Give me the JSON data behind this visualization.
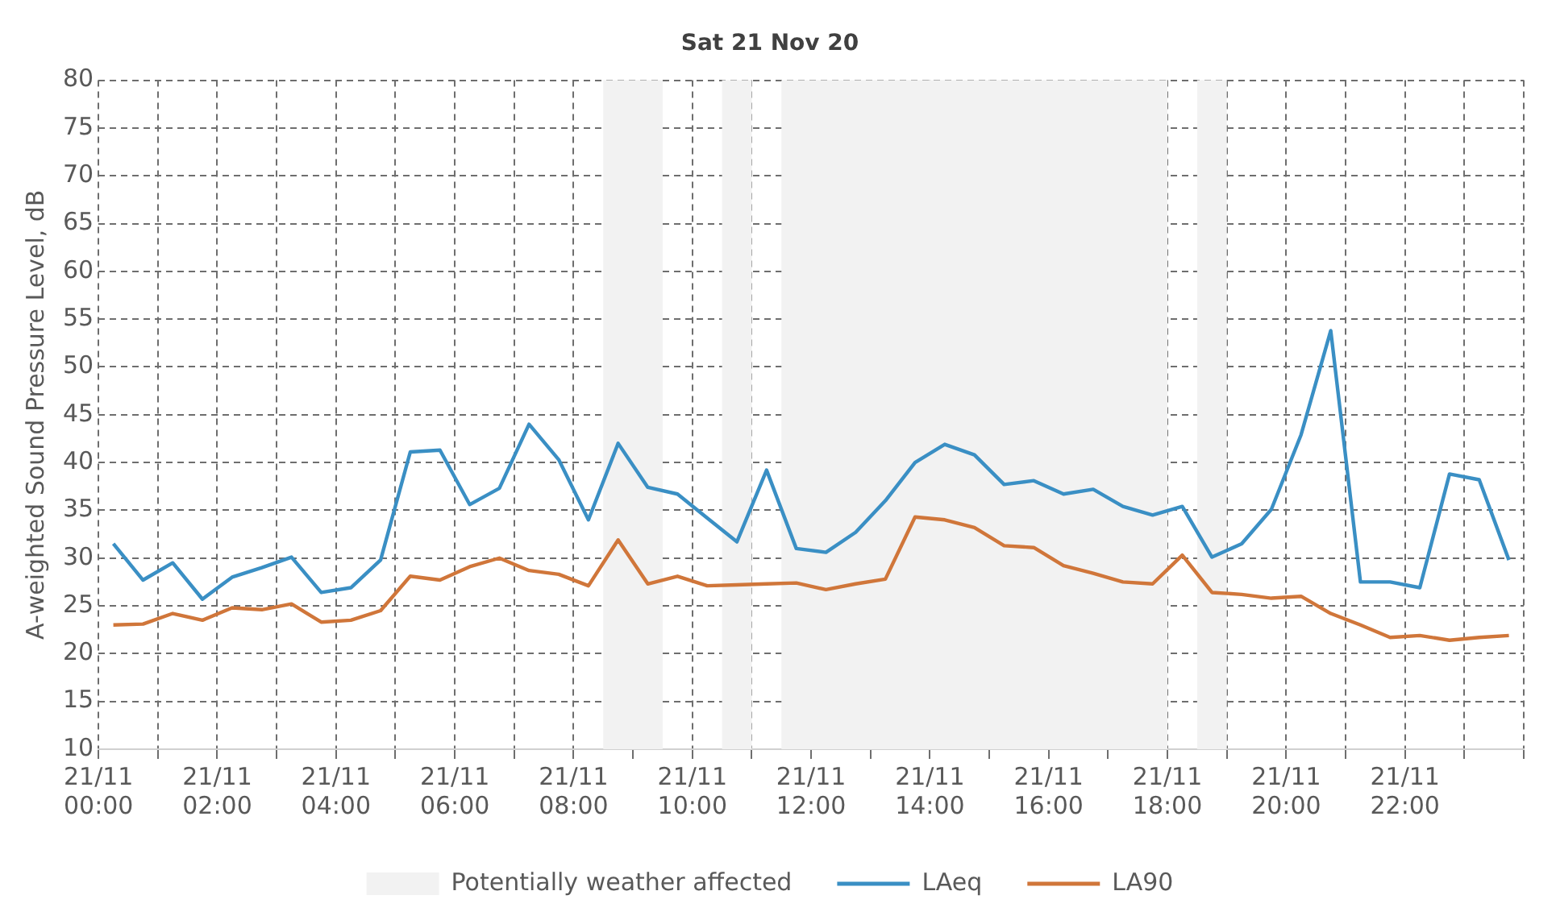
{
  "chart_data": {
    "type": "line",
    "title": "Sat 21 Nov 20",
    "ylabel": "A-weighted Sound Pressure Level, dB",
    "x": [
      "--11-21T00:15",
      "--11-21T00:45",
      "--11-21T01:15",
      "--11-21T01:45",
      "--11-21T02:15",
      "--11-21T02:45",
      "--11-21T03:15",
      "--11-21T03:45",
      "--11-21T04:15",
      "--11-21T04:45",
      "--11-21T05:15",
      "--11-21T05:45",
      "--11-21T06:15",
      "--11-21T06:45",
      "--11-21T07:15",
      "--11-21T07:45",
      "--11-21T08:15",
      "--11-21T08:45",
      "--11-21T09:15",
      "--11-21T09:45",
      "--11-21T10:15",
      "--11-21T10:45",
      "--11-21T11:15",
      "--11-21T11:45",
      "--11-21T12:15",
      "--11-21T12:45",
      "--11-21T13:15",
      "--11-21T13:45",
      "--11-21T14:15",
      "--11-21T14:45",
      "--11-21T15:15",
      "--11-21T15:45",
      "--11-21T16:15",
      "--11-21T16:45",
      "--11-21T17:15",
      "--11-21T17:45",
      "--11-21T18:15",
      "--11-21T18:45",
      "--11-21T19:15",
      "--11-21T19:45",
      "--11-21T20:15",
      "--11-21T20:45",
      "--11-21T21:15",
      "--11-21T21:45",
      "--11-21T22:15",
      "--11-21T22:45",
      "--11-21T23:15",
      "--11-21T23:45"
    ],
    "series": [
      {
        "name": "LAeq",
        "color": "#3a8fc4",
        "values": [
          31.5,
          27.7,
          29.5,
          25.7,
          28.0,
          29.0,
          30.1,
          26.4,
          26.9,
          29.8,
          41.1,
          41.3,
          35.6,
          37.3,
          44.0,
          40.3,
          34.0,
          42.0,
          37.4,
          36.7,
          34.2,
          31.7,
          39.2,
          31.0,
          30.6,
          32.7,
          36.0,
          40.0,
          41.9,
          40.8,
          37.7,
          38.1,
          36.7,
          37.2,
          35.4,
          34.5,
          35.4,
          30.1,
          31.5,
          35.1,
          42.9,
          53.8,
          27.5,
          27.5,
          26.9,
          38.8,
          38.2,
          29.8
        ]
      },
      {
        "name": "LA90",
        "color": "#d0763a",
        "values": [
          23.0,
          23.1,
          24.2,
          23.5,
          24.8,
          24.6,
          25.2,
          23.3,
          23.5,
          24.5,
          28.1,
          27.7,
          29.1,
          30.0,
          28.7,
          28.3,
          27.1,
          31.9,
          27.3,
          28.1,
          27.1,
          27.2,
          27.3,
          27.4,
          26.7,
          27.3,
          27.8,
          34.3,
          34.0,
          33.2,
          31.3,
          31.1,
          29.2,
          28.4,
          27.5,
          27.3,
          30.3,
          26.4,
          26.2,
          25.8,
          26.0,
          24.2,
          23.0,
          21.7,
          21.9,
          21.4,
          21.7,
          21.9
        ]
      }
    ],
    "xlim": [
      "--11-21T00:00",
      "--11-22T00:00"
    ],
    "xticks": [
      {
        "value": "--11-21T00:00",
        "label": "21/11 00:00"
      },
      {
        "value": "--11-21T01:00",
        "label": null
      },
      {
        "value": "--11-21T02:00",
        "label": "21/11 02:00"
      },
      {
        "value": "--11-21T03:00",
        "label": null
      },
      {
        "value": "--11-21T04:00",
        "label": "21/11 04:00"
      },
      {
        "value": "--11-21T05:00",
        "label": null
      },
      {
        "value": "--11-21T06:00",
        "label": "21/11 06:00"
      },
      {
        "value": "--11-21T07:00",
        "label": null
      },
      {
        "value": "--11-21T08:00",
        "label": "21/11 08:00"
      },
      {
        "value": "--11-21T09:00",
        "label": null
      },
      {
        "value": "--11-21T10:00",
        "label": "21/11 10:00"
      },
      {
        "value": "--11-21T11:00",
        "label": null
      },
      {
        "value": "--11-21T12:00",
        "label": "21/11 12:00"
      },
      {
        "value": "--11-21T13:00",
        "label": null
      },
      {
        "value": "--11-21T14:00",
        "label": "21/11 14:00"
      },
      {
        "value": "--11-21T15:00",
        "label": null
      },
      {
        "value": "--11-21T16:00",
        "label": "21/11 16:00"
      },
      {
        "value": "--11-21T17:00",
        "label": null
      },
      {
        "value": "--11-21T18:00",
        "label": "21/11 18:00"
      },
      {
        "value": "--11-21T19:00",
        "label": null
      },
      {
        "value": "--11-21T20:00",
        "label": "21/11 20:00"
      },
      {
        "value": "--11-21T21:00",
        "label": null
      },
      {
        "value": "--11-21T22:00",
        "label": "21/11 22:00"
      },
      {
        "value": "--11-21T23:00",
        "label": null
      },
      {
        "value": "--11-22T00:00",
        "label": null
      }
    ],
    "ylim": [
      10,
      80
    ],
    "yticks": [
      10,
      15,
      20,
      25,
      30,
      35,
      40,
      45,
      50,
      55,
      60,
      65,
      70,
      75,
      80
    ],
    "bands": [
      {
        "axis": "x",
        "from": "--11-21T08:30",
        "to": "--11-21T09:30",
        "label": "Potentially weather affected",
        "color": "#f2f2f2"
      },
      {
        "axis": "x",
        "from": "--11-21T10:30",
        "to": "--11-21T11:00",
        "color": "#f2f2f2"
      },
      {
        "axis": "x",
        "from": "--11-21T11:30",
        "to": "--11-21T18:00",
        "color": "#f2f2f2"
      },
      {
        "axis": "x",
        "from": "--11-21T18:30",
        "to": "--11-21T19:00",
        "color": "#f2f2f2"
      }
    ],
    "grid": true,
    "legend": "bottom",
    "marker": "none",
    "line_style": "solid"
  }
}
